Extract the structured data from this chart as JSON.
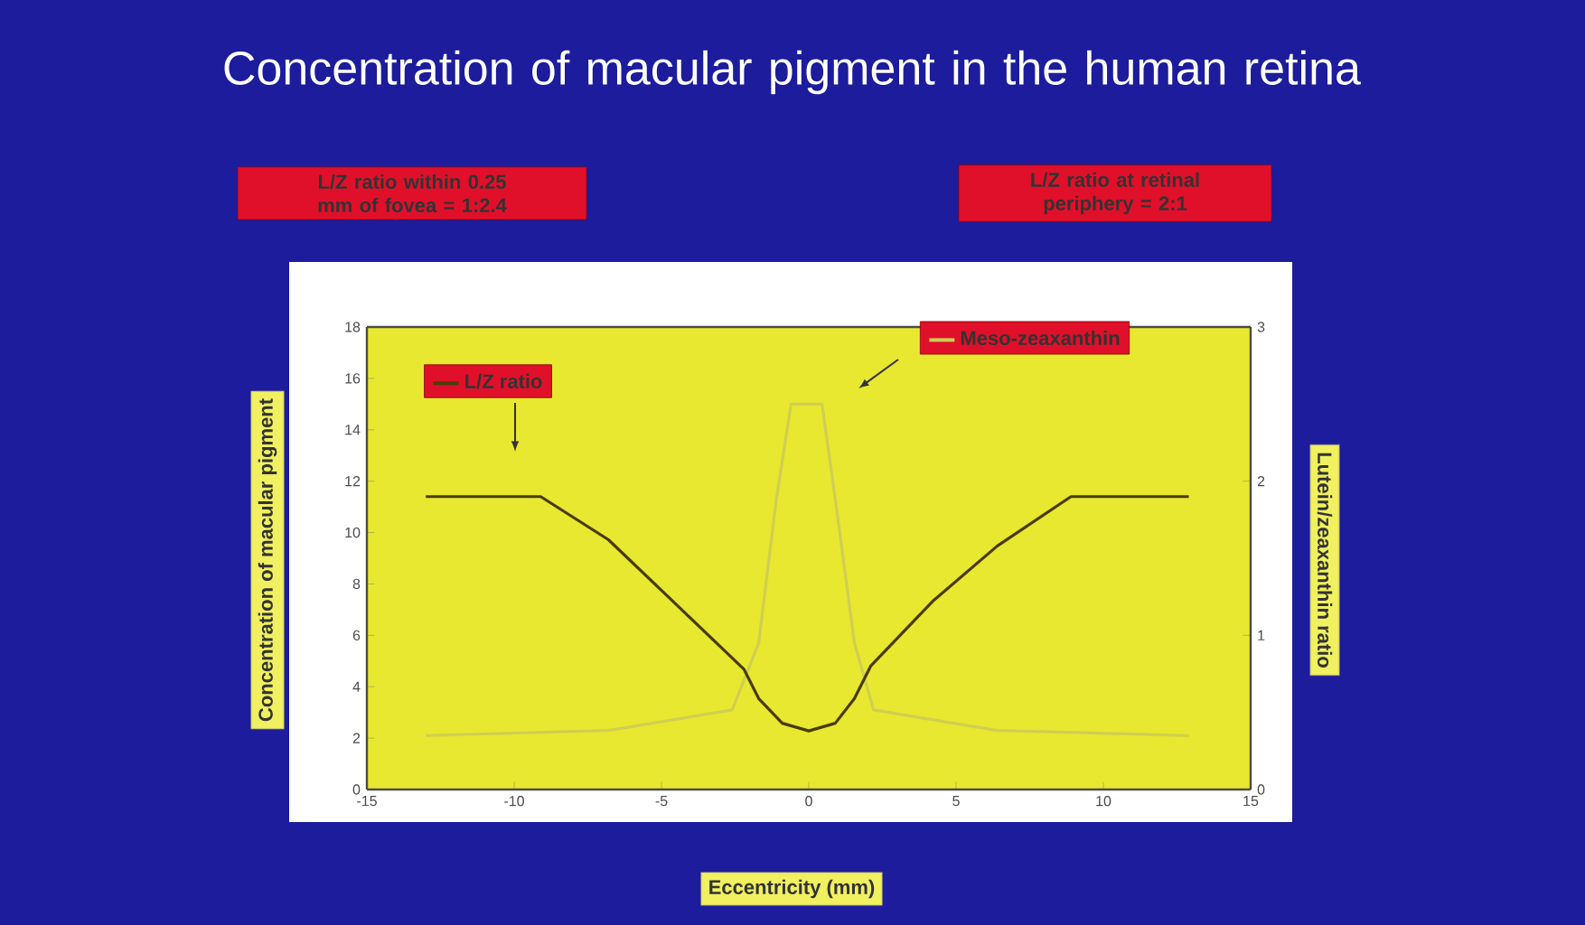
{
  "chart_data": {
    "type": "line",
    "title": "Concentration of macular pigment in the human retina",
    "xlabel": "Eccentricity (mm)",
    "ylabel": "Concentration of macular pigment",
    "y2label": "Lutein/zeaxanthin ratio",
    "annotations": [
      "L/Z ratio within 0.25 mm of fovea = 1:2.4",
      "L/Z ratio at retinal periphery = 2:1"
    ],
    "xlim": [
      -15,
      15
    ],
    "xticks": [
      -15,
      -10,
      -5,
      0,
      5,
      10,
      15
    ],
    "ylim": [
      0,
      18
    ],
    "yticks": [
      0,
      2,
      4,
      6,
      8,
      10,
      12,
      14,
      16,
      18
    ],
    "y2lim": [
      0,
      3
    ],
    "y2ticks": [
      0,
      1,
      2,
      3
    ],
    "legend": "top",
    "series": [
      {
        "name": "L/Z ratio",
        "color": "#4a3c0c",
        "axis": "y2",
        "x": [
          -13,
          -9.1,
          -6.8,
          -4.5,
          -2.2,
          -1.7,
          -0.9,
          0,
          0.9,
          1.55,
          2.1,
          4.2,
          6.4,
          8.9,
          12.9
        ],
        "values": [
          1.9,
          1.9,
          1.62,
          1.2,
          0.78,
          0.59,
          0.43,
          0.38,
          0.43,
          0.59,
          0.8,
          1.22,
          1.58,
          1.9,
          1.9
        ]
      },
      {
        "name": "Meso-zeaxanthin",
        "color": "#cfcf52",
        "x": [
          -13,
          -6.8,
          -2.6,
          -1.7,
          -1.1,
          -0.6,
          0.45,
          0.9,
          1.55,
          2.2,
          6.4,
          12.9
        ],
        "values": [
          2.1,
          2.3,
          3.1,
          5.7,
          11.3,
          15,
          15,
          11.3,
          5.7,
          3.1,
          2.3,
          2.1
        ]
      }
    ]
  }
}
